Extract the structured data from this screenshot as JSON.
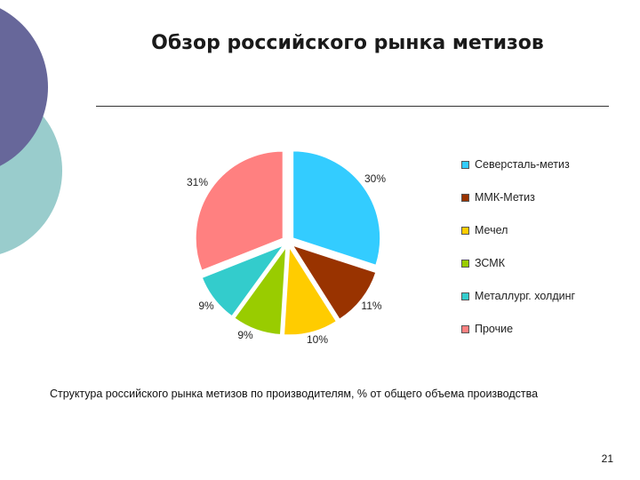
{
  "slide": {
    "title": "Обзор российского рынка метизов",
    "caption": "Структура российского рынка метизов по производителям, % от общего объема производства",
    "page_number": "21"
  },
  "theme": {
    "deco_dark": "#67679a",
    "deco_light": "#99cccc"
  },
  "chart_data": {
    "type": "pie",
    "title": "",
    "categories": [
      "Северсталь-метиз",
      "ММК-Метиз",
      "Мечел",
      "ЗСМК",
      "Металлург. холдинг",
      "Прочие"
    ],
    "values": [
      30,
      11,
      10,
      9,
      9,
      31
    ],
    "labels": [
      "30%",
      "11%",
      "10%",
      "9%",
      "9%",
      "31%"
    ],
    "colors": [
      "#33ccff",
      "#993300",
      "#ffcc00",
      "#99cc00",
      "#33cccc",
      "#ff8080"
    ],
    "exploded": true,
    "legend_position": "right"
  }
}
